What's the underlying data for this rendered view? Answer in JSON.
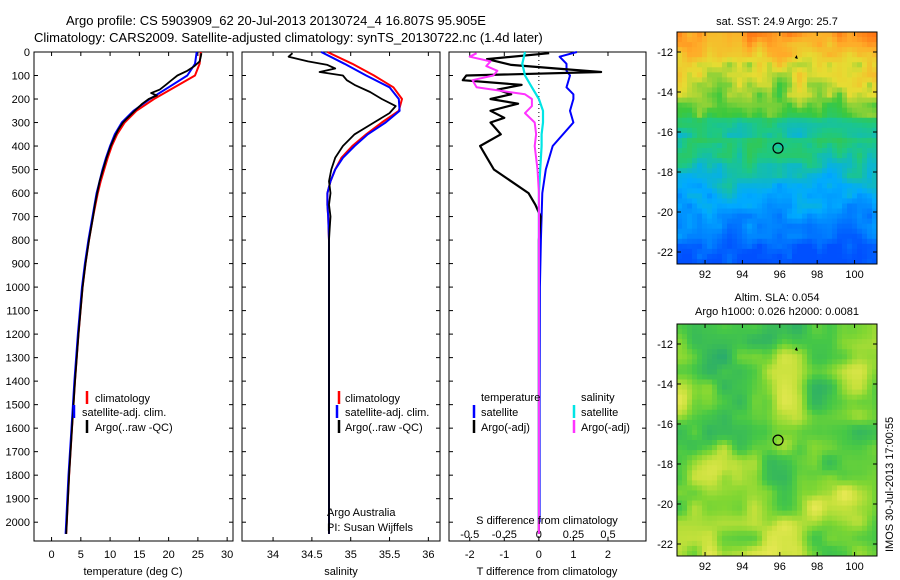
{
  "title": {
    "line1": "Argo profile: CS 5903909_62 20-Jul-2013 20130724_4 16.807S 95.905E",
    "line2": "Climatology: CARS2009. Satellite-adjusted climatology: synTS_20130722.nc (1.4d later)"
  },
  "legend_profiles": [
    "climatology",
    "satellite-adj. clim.",
    "Argo(..raw -QC)"
  ],
  "legend_diff": {
    "temperature_header": "temperature",
    "salinity_header": "salinity",
    "satellite": "satellite",
    "argo_adj": "Argo(-adj)"
  },
  "credits": {
    "line1": "Argo Australia",
    "line2": "PI: Susan Wijffels"
  },
  "map_sst_title": "sat. SST: 24.9 Argo: 25.7",
  "map_sla_title_1": "Altim. SLA: 0.054",
  "map_sla_title_2": "Argo h1000: 0.026 h2000: 0.0081",
  "timestamp": "IMOS 30-Jul-2013 17:00:55",
  "colors": {
    "climatology": "#ff0000",
    "satellite": "#0000ff",
    "argo": "#000000",
    "sal_satellite": "#00e5e5",
    "sal_argo": "#ff33ff"
  },
  "chart_data": [
    {
      "type": "line",
      "xlabel": "temperature (deg C)",
      "ylabel": "",
      "xlim": [
        -3,
        31
      ],
      "ylim": [
        2080,
        0
      ],
      "x_ticks": [
        0,
        5,
        10,
        15,
        20,
        25,
        30
      ],
      "y_ticks": [
        0,
        100,
        200,
        300,
        400,
        500,
        600,
        700,
        800,
        900,
        1000,
        1100,
        1200,
        1300,
        1400,
        1500,
        1600,
        1700,
        1800,
        1900,
        2000
      ],
      "series": [
        {
          "name": "climatology",
          "depth": [
            0,
            50,
            100,
            150,
            200,
            250,
            300,
            350,
            400,
            450,
            500,
            550,
            600,
            700,
            800,
            900,
            1000,
            1200,
            1400,
            1600,
            1800,
            2000,
            2050
          ],
          "values": [
            25.5,
            25.3,
            24.5,
            21,
            17.5,
            14.5,
            12.5,
            11.2,
            10.3,
            9.6,
            9,
            8.4,
            7.9,
            7.1,
            6.4,
            5.8,
            5.3,
            4.6,
            4,
            3.5,
            3,
            2.6,
            2.5
          ]
        },
        {
          "name": "satellite-adj. clim.",
          "depth": [
            0,
            50,
            100,
            150,
            200,
            250,
            300,
            350,
            400,
            450,
            500,
            550,
            600,
            700,
            800,
            900,
            1000,
            1200,
            1400,
            1600,
            1800,
            2000,
            2050
          ],
          "values": [
            24.8,
            24.5,
            23.2,
            20,
            16.8,
            14,
            12,
            10.8,
            10,
            9.3,
            8.7,
            8.2,
            7.7,
            7,
            6.3,
            5.7,
            5.2,
            4.5,
            3.9,
            3.4,
            2.9,
            2.5,
            2.4
          ]
        },
        {
          "name": "Argo(..raw -QC)",
          "depth": [
            5,
            20,
            40,
            60,
            80,
            100,
            120,
            140,
            160,
            175,
            185,
            200,
            220,
            250,
            280,
            300,
            330,
            360,
            400,
            450,
            500,
            550,
            600,
            650,
            700,
            800,
            900,
            1000,
            1200,
            1400,
            1600,
            1800,
            2000,
            2050
          ],
          "values": [
            25.6,
            25.5,
            25.3,
            24.4,
            23.2,
            21.5,
            20.5,
            19.5,
            18.5,
            17,
            18,
            16.6,
            15.5,
            14.2,
            13,
            12.2,
            11.4,
            10.8,
            10.1,
            9.4,
            8.8,
            8.2,
            7.8,
            7.4,
            7.1,
            6.4,
            5.8,
            5.3,
            4.6,
            4,
            3.5,
            3,
            2.6,
            2.5
          ]
        }
      ]
    },
    {
      "type": "line",
      "xlabel": "salinity",
      "ylabel": "",
      "xlim": [
        33.6,
        36.15
      ],
      "ylim": [
        2080,
        0
      ],
      "x_ticks": [
        34,
        34.5,
        35,
        35.5,
        36
      ],
      "series": [
        {
          "name": "climatology",
          "depth": [
            0,
            50,
            100,
            150,
            200,
            250,
            300,
            350,
            400,
            450,
            500,
            550,
            600,
            650,
            700,
            800,
            900,
            1000,
            1200,
            1500,
            1800,
            2050
          ],
          "values": [
            34.7,
            35.02,
            35.3,
            35.55,
            35.66,
            35.62,
            35.4,
            35.2,
            35.02,
            34.88,
            34.8,
            34.74,
            34.7,
            34.7,
            34.71,
            34.72,
            34.72,
            34.72,
            34.72,
            34.72,
            34.72,
            34.72
          ]
        },
        {
          "name": "satellite-adj. clim.",
          "depth": [
            0,
            50,
            100,
            150,
            200,
            250,
            300,
            350,
            400,
            450,
            500,
            550,
            600,
            650,
            700,
            800,
            900,
            1000,
            1200,
            1500,
            1800,
            2050
          ],
          "values": [
            34.62,
            34.92,
            35.2,
            35.5,
            35.62,
            35.63,
            35.45,
            35.22,
            35.05,
            34.9,
            34.8,
            34.74,
            34.7,
            34.7,
            34.71,
            34.72,
            34.72,
            34.72,
            34.72,
            34.72,
            34.72,
            34.72
          ]
        },
        {
          "name": "Argo(..raw -QC)",
          "depth": [
            5,
            20,
            40,
            55,
            70,
            85,
            100,
            120,
            140,
            170,
            200,
            230,
            260,
            300,
            350,
            400,
            450,
            500,
            550,
            600,
            650,
            700,
            750,
            800,
            900,
            1000,
            1200,
            1500,
            1800,
            2050
          ],
          "values": [
            34.25,
            34.2,
            34.45,
            34.7,
            34.8,
            34.6,
            34.9,
            34.95,
            35.05,
            35.25,
            35.4,
            35.58,
            35.5,
            35.3,
            35.05,
            34.9,
            34.8,
            34.75,
            34.72,
            34.74,
            34.72,
            34.74,
            34.73,
            34.72,
            34.72,
            34.72,
            34.72,
            34.72,
            34.72,
            34.72
          ]
        }
      ]
    },
    {
      "type": "line",
      "xlabel": "T difference from climatology",
      "x2label": "S difference from climatology",
      "xlim": [
        -2.6,
        3.1
      ],
      "x2lim": [
        -0.65,
        0.775
      ],
      "ylim": [
        2080,
        0
      ],
      "x_ticks": [
        -2,
        -1,
        0,
        1,
        2
      ],
      "x2_ticks": [
        -0.5,
        -0.25,
        0,
        0.25,
        0.5
      ],
      "x2_tick_labels": [
        "-0.5",
        "-0.25",
        "0",
        "0.25",
        "0.5"
      ],
      "series": [
        {
          "name": "temperature satellite",
          "depth": [
            0,
            20,
            50,
            80,
            100,
            150,
            180,
            200,
            250,
            300,
            400,
            500,
            600,
            800,
            1000,
            1500,
            2000
          ],
          "values": [
            1.1,
            0.6,
            0.8,
            0.8,
            0.9,
            0.8,
            1.0,
            1.0,
            0.9,
            1.0,
            0.4,
            0.2,
            0.1,
            0.06,
            0.03,
            0.02,
            0.02
          ]
        },
        {
          "name": "temperature Argo(-adj)",
          "depth": [
            5,
            30,
            55,
            70,
            85,
            100,
            120,
            140,
            160,
            180,
            200,
            220,
            250,
            280,
            300,
            350,
            400,
            450,
            500,
            550,
            600,
            650,
            700,
            800,
            900,
            1000,
            1200,
            1500,
            1800,
            2050
          ],
          "values": [
            0.3,
            -1.5,
            -0.8,
            0.5,
            1.8,
            -2.1,
            -2.2,
            -0.5,
            -1.2,
            -0.8,
            -1.4,
            -0.6,
            -1.4,
            -1.0,
            -1.4,
            -1.1,
            -1.7,
            -1.5,
            -1.3,
            -0.8,
            -0.3,
            -0.1,
            0.05,
            0,
            0,
            0,
            0,
            0,
            0,
            0
          ]
        },
        {
          "name": "salinity satellite",
          "depth": [
            0,
            50,
            100,
            150,
            200,
            250,
            300,
            350,
            400,
            500,
            600,
            800,
            1000,
            1500,
            2000
          ],
          "values": [
            -0.1,
            -0.12,
            -0.1,
            -0.05,
            0.0,
            0.03,
            0.03,
            0.02,
            0.02,
            0.01,
            0,
            0,
            0,
            0,
            0
          ]
        },
        {
          "name": "salinity Argo(-adj)",
          "depth": [
            5,
            20,
            40,
            60,
            80,
            100,
            120,
            150,
            180,
            200,
            230,
            260,
            300,
            350,
            400,
            450,
            500,
            600,
            700,
            800,
            1000,
            1500,
            2050
          ],
          "values": [
            -0.45,
            -0.5,
            -0.35,
            -0.38,
            -0.3,
            -0.33,
            -0.48,
            -0.45,
            -0.1,
            -0.05,
            -0.05,
            -0.1,
            -0.03,
            -0.02,
            -0.03,
            -0.02,
            -0.01,
            0,
            0,
            0,
            0,
            0,
            0
          ]
        }
      ]
    },
    {
      "type": "heatmap",
      "title": "sat. SST: 24.9 Argo: 25.7",
      "xlim": [
        90.5,
        101.2
      ],
      "ylim": [
        -22.6,
        -11
      ],
      "x_ticks": [
        92,
        94,
        96,
        98,
        100
      ],
      "y_ticks": [
        -12,
        -14,
        -16,
        -18,
        -20,
        -22
      ],
      "float_position": {
        "lon": 95.905,
        "lat": -16.807
      }
    },
    {
      "type": "heatmap",
      "title": "Altim. SLA: 0.054",
      "subtitle": "Argo h1000: 0.026 h2000: 0.0081",
      "xlim": [
        90.5,
        101.2
      ],
      "ylim": [
        -22.6,
        -11
      ],
      "x_ticks": [
        92,
        94,
        96,
        98,
        100
      ],
      "y_ticks": [
        -12,
        -14,
        -16,
        -18,
        -20,
        -22
      ],
      "float_position": {
        "lon": 95.905,
        "lat": -16.807
      }
    }
  ]
}
